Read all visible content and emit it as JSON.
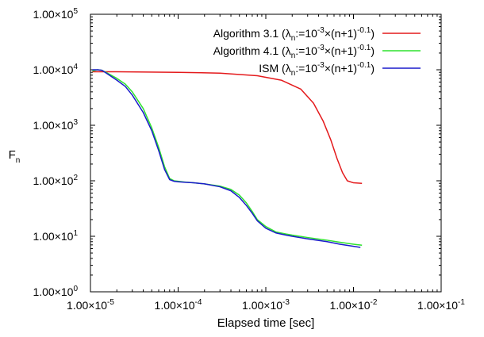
{
  "chart_data": {
    "type": "line",
    "xlabel": "Elapsed time [sec]",
    "ylabel": "F",
    "ylabel_subscript": "n",
    "xscale": "log",
    "yscale": "log",
    "xlim": [
      1e-05,
      0.1
    ],
    "ylim": [
      1,
      100000
    ],
    "grid": false,
    "legend_position": "top-right",
    "x_ticks": [
      1e-05,
      0.0001,
      0.001,
      0.01,
      0.1
    ],
    "x_tick_labels": [
      "1.00×10",
      "1.00×10",
      "1.00×10",
      "1.00×10",
      "1.00×10"
    ],
    "x_tick_exponents": [
      "-5",
      "-4",
      "-3",
      "-2",
      "-1"
    ],
    "y_ticks": [
      1,
      10,
      100,
      1000,
      10000,
      100000
    ],
    "y_tick_labels": [
      "1.00×10",
      "1.00×10",
      "1.00×10",
      "1.00×10",
      "1.00×10",
      "1.00×10"
    ],
    "y_tick_exponents": [
      "0",
      "1",
      "2",
      "3",
      "4",
      "5"
    ],
    "series": [
      {
        "name": "Algorithm 3.1",
        "legend_param": "λ",
        "legend_param_sub": "n",
        "legend_mid": ":=10",
        "legend_exp1": "-3",
        "legend_tail": "×(n+1)",
        "legend_exp2": "-0.1",
        "legend_close": ")",
        "color": "#e41a1c",
        "x": [
          1.05e-05,
          2e-05,
          0.0001,
          0.0003,
          0.0008,
          0.0015,
          0.0025,
          0.0035,
          0.0045,
          0.0055,
          0.0065,
          0.0075,
          0.0085,
          0.01,
          0.0125
        ],
        "y": [
          9200,
          9200,
          9000,
          8700,
          7800,
          6500,
          4500,
          2500,
          1200,
          550,
          250,
          140,
          100,
          92,
          90
        ]
      },
      {
        "name": "Algorithm 4.1",
        "legend_param": "λ",
        "legend_param_sub": "n",
        "legend_mid": ":=10",
        "legend_exp1": "-3",
        "legend_tail": "×(n+1)",
        "legend_exp2": "-0.1",
        "legend_close": ")",
        "color": "#2ee22e",
        "x": [
          1.05e-05,
          1.2e-05,
          1.35e-05,
          1.5e-05,
          2e-05,
          2.5e-05,
          3e-05,
          4e-05,
          5e-05,
          6e-05,
          7e-05,
          8e-05,
          9e-05,
          0.0001,
          0.00012,
          0.00015,
          0.0002,
          0.0003,
          0.0004,
          0.0005,
          0.0006,
          0.0007,
          0.0008,
          0.001,
          0.0013,
          0.0017,
          0.002,
          0.003,
          0.005,
          0.007,
          0.01,
          0.0125
        ],
        "y": [
          9500,
          10000,
          9800,
          9000,
          7000,
          5500,
          4000,
          2000,
          900,
          400,
          180,
          110,
          100,
          98,
          95,
          92,
          88,
          80,
          70,
          55,
          40,
          28,
          20,
          15,
          12,
          11,
          10.5,
          9.5,
          8.5,
          7.8,
          7.2,
          6.9
        ]
      },
      {
        "name": "ISM",
        "legend_param": "λ",
        "legend_param_sub": "n",
        "legend_mid": ":=10",
        "legend_exp1": "-3",
        "legend_tail": "×(n+1)",
        "legend_exp2": "-0.1",
        "legend_close": ")",
        "color": "#1a1acc",
        "x": [
          1.05e-05,
          1.2e-05,
          1.35e-05,
          1.5e-05,
          2e-05,
          2.5e-05,
          3e-05,
          4e-05,
          5e-05,
          6e-05,
          7e-05,
          8e-05,
          9e-05,
          0.0001,
          0.00012,
          0.00015,
          0.0002,
          0.0003,
          0.0004,
          0.0005,
          0.0006,
          0.0007,
          0.0008,
          0.001,
          0.0013,
          0.0017,
          0.002,
          0.003,
          0.005,
          0.007,
          0.01,
          0.012
        ],
        "y": [
          10000,
          10000,
          9800,
          8800,
          6500,
          5000,
          3500,
          1700,
          800,
          350,
          160,
          105,
          98,
          96,
          94,
          92,
          88,
          78,
          66,
          50,
          36,
          26,
          19,
          14,
          11.5,
          10.5,
          10,
          9,
          8,
          7.2,
          6.6,
          6.3
        ]
      }
    ]
  }
}
